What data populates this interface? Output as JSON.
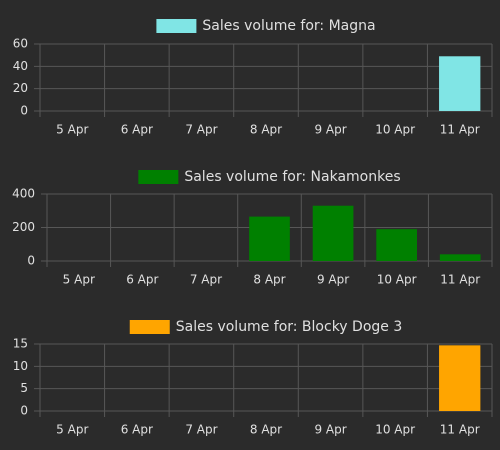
{
  "chart_data": [
    {
      "type": "bar",
      "categories": [
        "5 Apr",
        "6 Apr",
        "7 Apr",
        "8 Apr",
        "9 Apr",
        "10 Apr",
        "11 Apr"
      ],
      "series": [
        {
          "name": "Sales volume for: Magna",
          "color": "#80e5e5",
          "values": [
            0,
            0,
            0,
            0,
            0,
            0,
            49
          ]
        }
      ],
      "ylim": [
        0,
        60
      ],
      "yticks": [
        0,
        20,
        40,
        60
      ],
      "grid": true
    },
    {
      "type": "bar",
      "categories": [
        "5 Apr",
        "6 Apr",
        "7 Apr",
        "8 Apr",
        "9 Apr",
        "10 Apr",
        "11 Apr"
      ],
      "series": [
        {
          "name": "Sales volume for: Nakamonkes",
          "color": "#008000",
          "values": [
            0,
            0,
            0,
            265,
            330,
            190,
            40
          ]
        }
      ],
      "ylim": [
        0,
        400
      ],
      "yticks": [
        0,
        200,
        400
      ],
      "grid": true
    },
    {
      "type": "bar",
      "categories": [
        "5 Apr",
        "6 Apr",
        "7 Apr",
        "8 Apr",
        "9 Apr",
        "10 Apr",
        "11 Apr"
      ],
      "series": [
        {
          "name": "Sales volume for: Blocky Doge 3",
          "color": "#ffa500",
          "values": [
            0,
            0,
            0,
            0,
            0,
            0,
            14.7
          ]
        }
      ],
      "ylim": [
        0,
        15
      ],
      "yticks": [
        0,
        5,
        10,
        15
      ],
      "grid": true
    }
  ]
}
